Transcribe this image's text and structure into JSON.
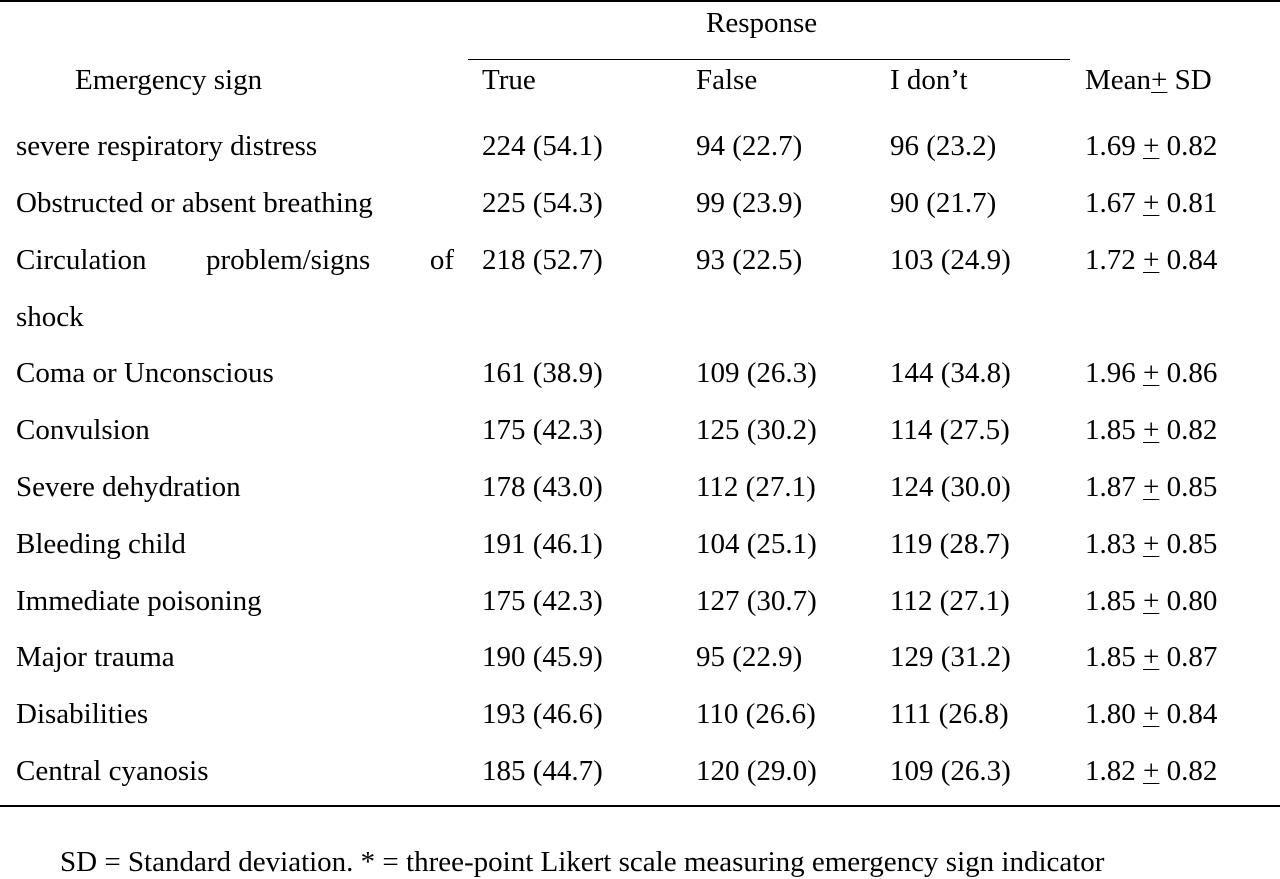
{
  "table": {
    "headers": {
      "response": "Response",
      "emergency_sign": "Emergency sign",
      "true": "True",
      "false": "False",
      "idk": "I don’t",
      "mean_prefix": "Mean",
      "mean_pm": "+",
      "mean_suffix": " SD"
    },
    "rows": [
      {
        "sign": "severe respiratory distress",
        "true": "224 (54.1)",
        "false": "94 (22.7)",
        "idk": "96 (23.2)",
        "mean": "1.69",
        "sd": "0.82"
      },
      {
        "sign": "Obstructed or absent breathing",
        "true": "225 (54.3)",
        "false": "99 (23.9)",
        "idk": "90 (21.7)",
        "mean": "1.67",
        "sd": "0.81"
      },
      {
        "sign_words": [
          "Circulation",
          "problem/signs",
          "of"
        ],
        "sign_cont": "shock",
        "true": "218 (52.7)",
        "false": "93 (22.5)",
        "idk": "103 (24.9)",
        "mean": "1.72",
        "sd": "0.84"
      },
      {
        "sign": "Coma or Unconscious",
        "true": "161 (38.9)",
        "false": "109 (26.3)",
        "idk": "144 (34.8)",
        "mean": "1.96",
        "sd": "0.86"
      },
      {
        "sign": "Convulsion",
        "true": "175 (42.3)",
        "false": "125 (30.2)",
        "idk": "114 (27.5)",
        "mean": "1.85",
        "sd": "0.82"
      },
      {
        "sign": "Severe dehydration",
        "true": "178 (43.0)",
        "false": "112 (27.1)",
        "idk": "124 (30.0)",
        "mean": "1.87",
        "sd": "0.85"
      },
      {
        "sign": "Bleeding child",
        "true": "191 (46.1)",
        "false": "104 (25.1)",
        "idk": "119 (28.7)",
        "mean": "1.83",
        "sd": "0.85"
      },
      {
        "sign": "Immediate poisoning",
        "true": "175 (42.3)",
        "false": "127 (30.7)",
        "idk": "112 (27.1)",
        "mean": "1.85",
        "sd": "0.80"
      },
      {
        "sign": "Major trauma",
        "true": "190 (45.9)",
        "false": "95 (22.9)",
        "idk": "129 (31.2)",
        "mean": "1.85",
        "sd": "0.87"
      },
      {
        "sign": "Disabilities",
        "true": "193 (46.6)",
        "false": "110 (26.6)",
        "idk": "111 (26.8)",
        "mean": "1.80",
        "sd": "0.84"
      },
      {
        "sign": "Central cyanosis",
        "true": "185 (44.7)",
        "false": "120 (29.0)",
        "idk": "109 (26.3)",
        "mean": "1.82",
        "sd": "0.82"
      }
    ],
    "pm_symbol": "+",
    "footnote": "SD = Standard deviation.  * = three-point Likert scale measuring emergency sign indicator"
  }
}
